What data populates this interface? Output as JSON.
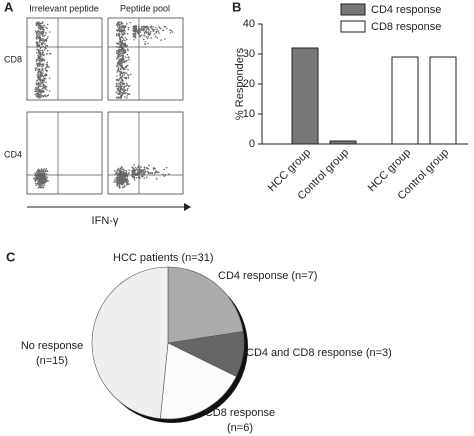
{
  "panel_labels": [
    "A",
    "B",
    "C"
  ],
  "flow_panel": {
    "columns": [
      "Irrelevant peptide",
      "Peptide pool"
    ],
    "rows": [
      "CD8",
      "CD4"
    ],
    "x_label": "IFN-γ"
  },
  "chart_data": [
    {
      "type": "bar",
      "y_label": "% Responders",
      "categories": [
        "HCC group",
        "Control group",
        "HCC group",
        "Control group"
      ],
      "series": [
        {
          "name": "CD4 response",
          "color": "#777777",
          "values": [
            32,
            1,
            null,
            null
          ]
        },
        {
          "name": "CD8 response",
          "color": "#ffffff",
          "values": [
            null,
            null,
            29,
            29
          ]
        }
      ],
      "ylim": [
        0,
        40
      ],
      "yticks": [
        0,
        10,
        20,
        30,
        40
      ],
      "legend": "top-right"
    },
    {
      "type": "pie",
      "title": "HCC patients (n=31)",
      "labels": [
        [
          "CD4 response (n=7)"
        ],
        [
          "CD4 and CD8 response (n=3)"
        ],
        [
          "CD8 response",
          "(n=6)"
        ],
        [
          "No response",
          "(n=15)"
        ]
      ],
      "values": [
        7,
        3,
        6,
        15
      ],
      "colors": [
        "#ababab",
        "#666666",
        "#fbfbfb",
        "#efefef"
      ]
    }
  ]
}
